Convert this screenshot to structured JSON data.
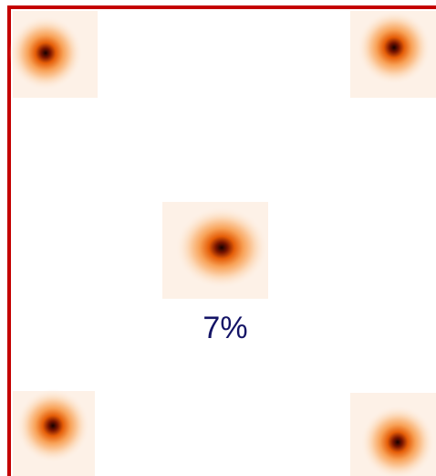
{
  "label": "7%"
}
